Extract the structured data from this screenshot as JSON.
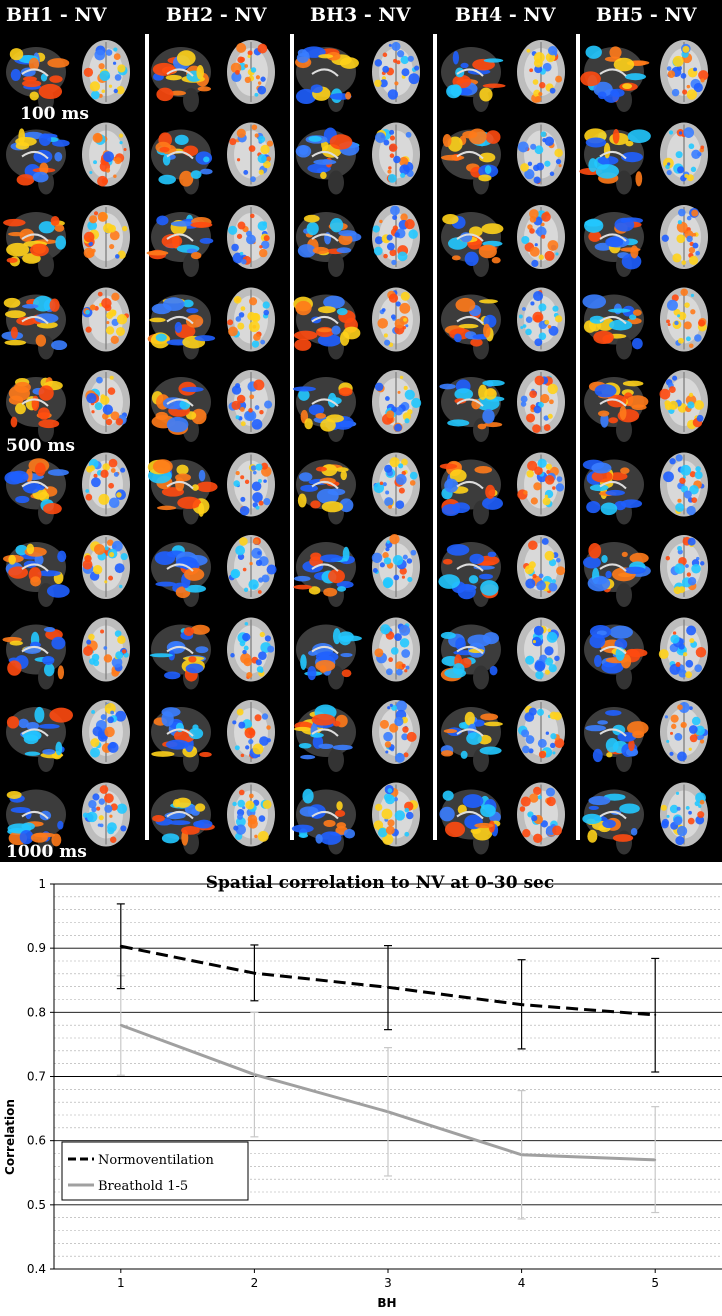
{
  "figure": {
    "columns": [
      {
        "label": "BH1 - NV"
      },
      {
        "label": "BH2 - NV"
      },
      {
        "label": "BH3 - NV"
      },
      {
        "label": "BH4 - NV"
      },
      {
        "label": "BH5 - NV"
      }
    ],
    "time_labels": [
      "100 ms",
      "500 ms",
      "1000 ms"
    ],
    "colors": {
      "positive": "#ff7a1a",
      "positive_hot": "#ffd21a",
      "negative": "#1f5fff",
      "negative_cyan": "#22c8ff",
      "background": "#000000"
    }
  },
  "chart_data": {
    "type": "line",
    "title": "Spatial correlation to NV at 0-30 sec",
    "xlabel": "BH",
    "ylabel": "Correlation",
    "x": [
      1,
      2,
      3,
      4,
      5
    ],
    "xlim": [
      0.5,
      5.5
    ],
    "ylim": [
      0.4,
      1.0
    ],
    "yticks": [
      "0.4",
      "0.5",
      "0.6",
      "0.7",
      "0.8",
      "0.9",
      "1"
    ],
    "xticks": [
      "1",
      "2",
      "3",
      "4",
      "5"
    ],
    "grid": true,
    "legend_position": "lower-left",
    "series": [
      {
        "name": "Normoventilation",
        "values": [
          0.903,
          0.861,
          0.839,
          0.812,
          0.796
        ],
        "err_low": [
          0.837,
          0.818,
          0.773,
          0.743,
          0.707
        ],
        "err_high": [
          0.969,
          0.905,
          0.904,
          0.882,
          0.884
        ],
        "color": "#000000",
        "dash": true
      },
      {
        "name": "Breathold 1-5",
        "values": [
          0.78,
          0.703,
          0.645,
          0.578,
          0.57
        ],
        "err_low": [
          0.702,
          0.606,
          0.545,
          0.478,
          0.488
        ],
        "err_high": [
          0.857,
          0.8,
          0.745,
          0.678,
          0.653
        ],
        "color": "#a0a0a0",
        "dash": false
      }
    ]
  }
}
